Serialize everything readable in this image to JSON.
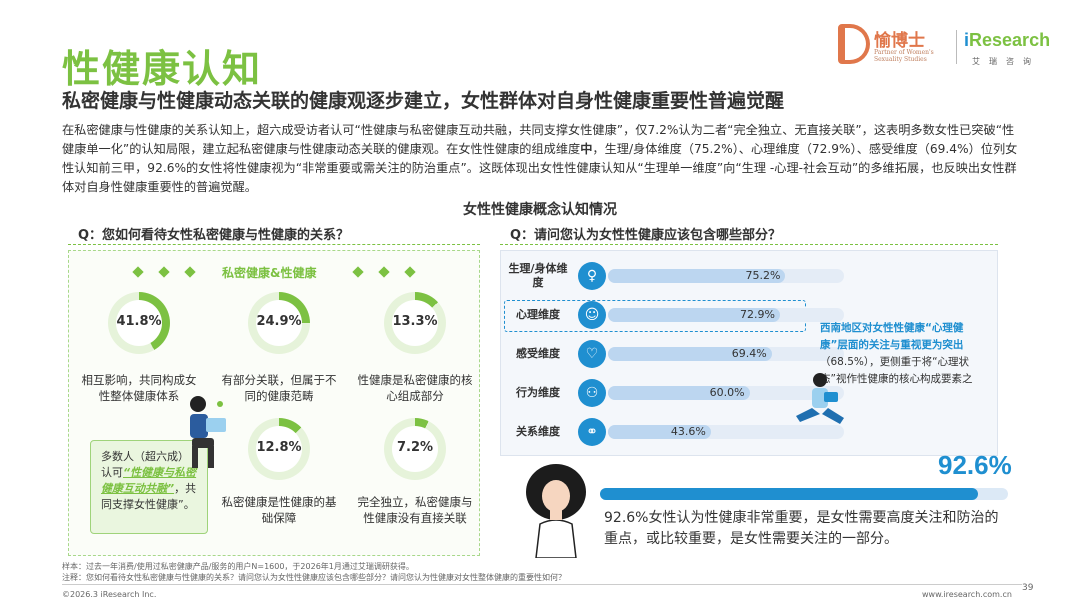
{
  "header": {
    "title": "性健康认知",
    "subtitle": "私密健康与性健康动态关联的健康观逐步建立，女性群体对自身性健康重要性普遍觉醒",
    "logo1_name": "愉博士",
    "logo1_sub": "Partner of Women's Sexuality Studies",
    "logo2_name": "Research",
    "logo2_prefix": "i",
    "logo2_sub": "艾瑞咨询"
  },
  "description": {
    "part1": "在私密健康与性健康的关系认知上，超六成受访者认可“性健康与私密健康互动共融，共同支撑女性健康”，仅7.2%认为二者“完全独立、无直接关联”，这表明多数女性已突破“性健康单一化”的认知局限，建立起私密健康与性健康动态关联的健康观。在女性性健康的组成维度",
    "bold": "中",
    "part2": "，生理/身体维度（75.2%）、心理维度（72.9%）、感受维度（69.4%）位列女性认知前三甲，92.6%的女性将性健康视为“非常重要或需关注的防治重点”。这既体现出女性性健康认知从“生理单一维度”向“生理 -心理-社会互动”的多维拓展，也反映出女性群体对自身性健康重要性的普遍觉醒。"
  },
  "chart_title": "女性性健康概念认知情况",
  "left": {
    "question": "Q：您如何看待女性私密健康与性健康的关系？",
    "panel_head": "私密健康&性健康",
    "callout": {
      "pre": "多数人（超六成）认可",
      "highlight": "“性健康与私密健康互动共融”",
      "post": "，共同支撑女性健康”。"
    }
  },
  "right": {
    "question": "Q：请问您认为女性性健康应该包含哪些部分？",
    "callout": {
      "highlight": "西南地区对女性性健康“心理健康”层面的关注与重视更为突出",
      "post": "（68.5%），更侧重于将“心理状态”视作性健康的核心构成要素之一。"
    },
    "summary_value": "92.6%",
    "summary_text": "92.6%女性认为性健康非常重要，是女性需要高度关注和防治的重点，或比较重要，是女性需要关注的一部分。"
  },
  "chart_data": [
    {
      "type": "pie",
      "question": "Q：您如何看待女性私密健康与性健康的关系？",
      "items": [
        {
          "label": "相互影响，共同构成女性整体健康体系",
          "value": 41.8,
          "display": "41.8%"
        },
        {
          "label": "有部分关联，但属于不同的健康范畴",
          "value": 24.9,
          "display": "24.9%"
        },
        {
          "label": "性健康是私密健康的核心组成部分",
          "value": 13.3,
          "display": "13.3%"
        },
        {
          "label": "私密健康是性健康的基础保障",
          "value": 12.8,
          "display": "12.8%"
        },
        {
          "label": "完全独立，私密健康与性健康没有直接关联",
          "value": 7.2,
          "display": "7.2%"
        }
      ]
    },
    {
      "type": "bar",
      "question": "Q：请问您认为女性性健康应该包含哪些部分？",
      "categories": [
        "生理/身体维度",
        "心理维度",
        "感受维度",
        "行为维度",
        "关系维度"
      ],
      "values": [
        75.2,
        72.9,
        69.4,
        60.0,
        43.6
      ],
      "display": [
        "75.2%",
        "72.9%",
        "69.4%",
        "60.0%",
        "43.6%"
      ],
      "xlim": [
        0,
        100
      ],
      "highlight_category": "心理维度",
      "colors": {
        "track": "#e4ecf6",
        "fill": "#bcd6f0",
        "accent": "#1f8fd0"
      }
    },
    {
      "type": "bar",
      "value": 92.6,
      "display": "92.6%",
      "xlim": [
        0,
        100
      ]
    }
  ],
  "footer": {
    "sample": "样本：过去一年消费/使用过私密健康产品/服务的用户N=1600，于2026年1月通过艾瑞调研获得。",
    "note": "注释：您如何看待女性私密健康与性健康的关系？请问您认为女性性健康应该包含哪些部分？请问您认为性健康对女性整体健康的重要性如何？",
    "copyright": "©2026.3 iResearch Inc.",
    "site": "www.iresearch.com.cn",
    "page": "39"
  },
  "colors": {
    "green": "#7cc142",
    "blue": "#1f8fd0",
    "orange": "#e0774b"
  }
}
